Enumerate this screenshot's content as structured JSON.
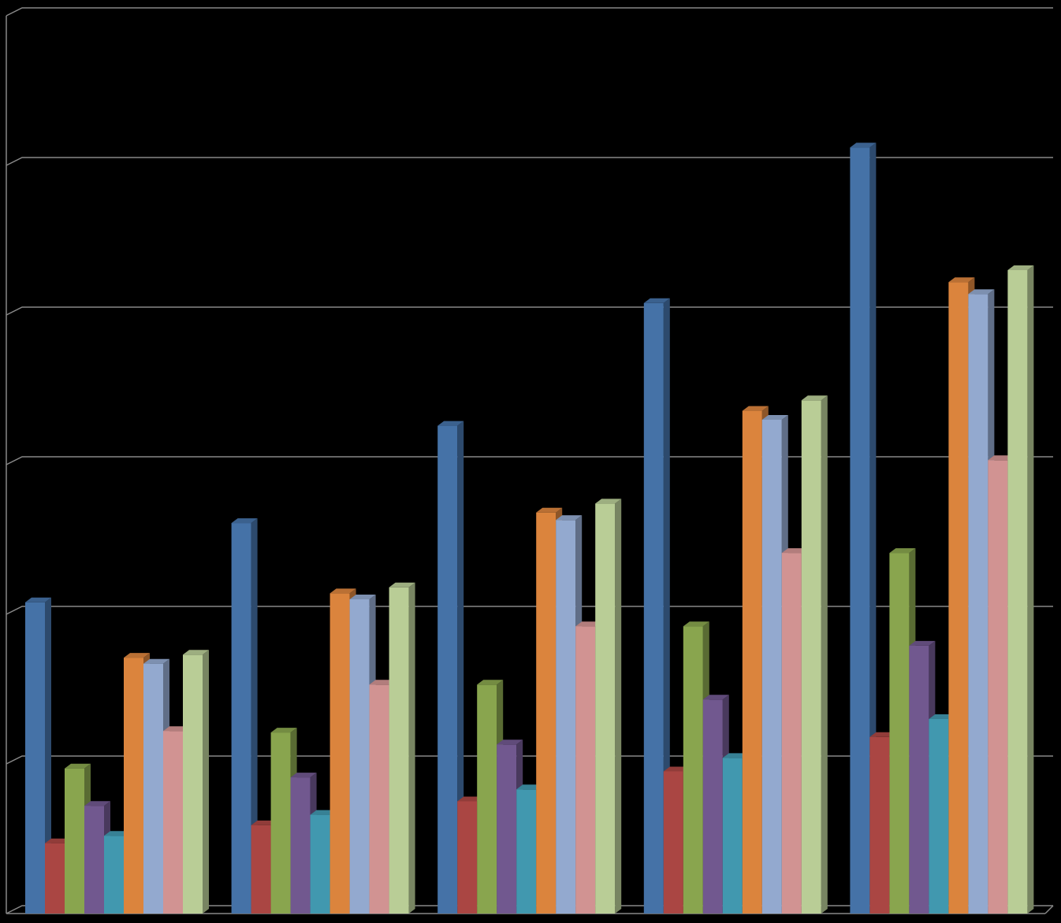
{
  "chart_data": {
    "type": "bar3d",
    "categories": [
      null,
      null,
      null,
      null,
      null
    ],
    "ylim": [
      0,
      6
    ],
    "yticks": [
      0,
      1,
      2,
      3,
      4,
      5,
      6
    ],
    "grid": true,
    "series": [
      {
        "color": "#4572a7",
        "values": [
          2.08,
          2.61,
          3.26,
          4.08,
          5.12
        ]
      },
      {
        "color": "#aa4643",
        "values": [
          0.47,
          0.59,
          0.75,
          0.95,
          1.18
        ]
      },
      {
        "color": "#89a54e",
        "values": [
          0.97,
          1.21,
          1.53,
          1.92,
          2.41
        ]
      },
      {
        "color": "#71588f",
        "values": [
          0.72,
          0.91,
          1.13,
          1.43,
          1.79
        ]
      },
      {
        "color": "#4198af",
        "values": [
          0.52,
          0.66,
          0.83,
          1.04,
          1.3
        ]
      },
      {
        "color": "#db843d",
        "values": [
          1.71,
          2.14,
          2.68,
          3.36,
          4.22
        ]
      },
      {
        "color": "#93a9cf",
        "values": [
          1.67,
          2.1,
          2.63,
          3.3,
          4.14
        ]
      },
      {
        "color": "#d19392",
        "values": [
          1.22,
          1.53,
          1.92,
          2.41,
          3.03
        ]
      },
      {
        "color": "#b9cd96",
        "values": [
          1.73,
          2.18,
          2.74,
          3.43,
          4.3
        ]
      }
    ]
  }
}
